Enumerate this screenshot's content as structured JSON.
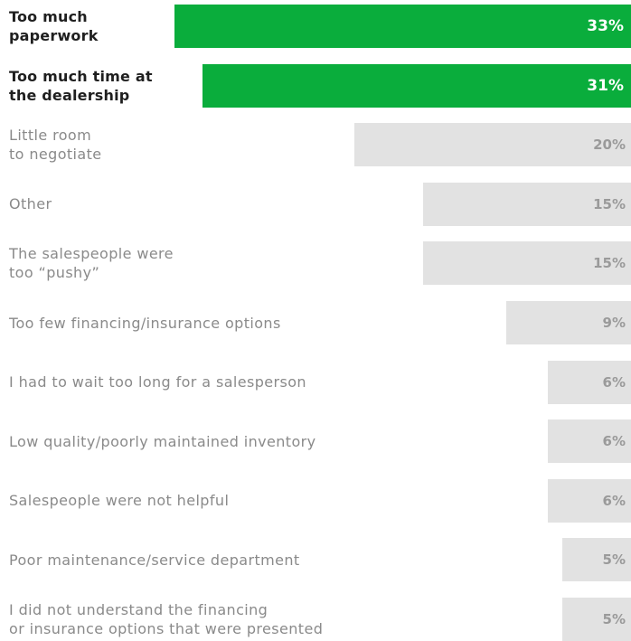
{
  "chart_data": {
    "type": "bar",
    "orientation": "horizontal",
    "title": "",
    "xlabel": "",
    "ylabel": "",
    "xlim": [
      0,
      33
    ],
    "grid": false,
    "legend": "none",
    "categories": [
      [
        "Too much",
        "paperwork"
      ],
      [
        "Too much time at",
        "the dealership"
      ],
      [
        "Little room",
        "to negotiate"
      ],
      [
        "Other"
      ],
      [
        "The salespeople were",
        "too “pushy”"
      ],
      [
        "Too few financing/insurance options"
      ],
      [
        "I had to wait too long for a salesperson"
      ],
      [
        "Low quality/poorly maintained inventory"
      ],
      [
        "Salespeople were not helpful"
      ],
      [
        "Poor maintenance/service department"
      ],
      [
        "I did not understand the financing",
        "or insurance options that were presented"
      ]
    ],
    "values": [
      33,
      31,
      20,
      15,
      15,
      9,
      6,
      6,
      6,
      5,
      5
    ],
    "value_labels": [
      "33%",
      "31%",
      "20%",
      "15%",
      "15%",
      "9%",
      "6%",
      "6%",
      "6%",
      "5%",
      "5%"
    ],
    "highlighted": [
      true,
      true,
      false,
      false,
      false,
      false,
      false,
      false,
      false,
      false,
      false
    ],
    "colors": {
      "highlight": "#0aad3c",
      "default": "#e2e2e2",
      "highlight_label": "#1f1f1f",
      "default_label": "#8a8a8a",
      "highlight_value": "#ffffff",
      "default_value": "#9a9a9a"
    }
  }
}
